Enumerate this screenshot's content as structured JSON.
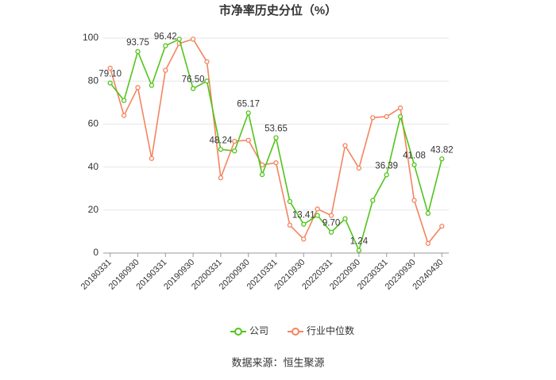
{
  "chart_data": {
    "type": "line",
    "title": "市净率历史分位（%）",
    "categories": [
      "20180331",
      null,
      "20180930",
      null,
      "20190331",
      null,
      "20190930",
      null,
      "20200331",
      null,
      "20200930",
      null,
      "20210331",
      null,
      "20210930",
      null,
      "20220331",
      null,
      "20220930",
      null,
      "20230331",
      null,
      "20230930",
      null,
      "20240430"
    ],
    "series": [
      {
        "name": "公司",
        "color": "#52c41a",
        "values": [
          79.1,
          71,
          93.75,
          78,
          96.42,
          99.5,
          76.5,
          80,
          48.24,
          47.5,
          65.17,
          36.5,
          53.65,
          24,
          13.41,
          17.5,
          9.7,
          16,
          1.24,
          24.5,
          36.39,
          63.5,
          41.08,
          18.5,
          43.82
        ],
        "value_labels": [
          "79.10",
          null,
          "93.75",
          null,
          "96.42",
          null,
          "76.50",
          null,
          "48.24",
          null,
          "65.17",
          null,
          "53.65",
          null,
          "13.41",
          null,
          "9.70",
          null,
          "1.24",
          null,
          "36.39",
          null,
          "41.08",
          null,
          "43.82"
        ]
      },
      {
        "name": "行业中位数",
        "color": "#f4845f",
        "values": [
          86,
          64,
          77,
          44,
          85,
          97.5,
          99.5,
          89,
          35,
          52,
          52.5,
          41,
          42,
          13,
          6.5,
          20.5,
          17.5,
          50,
          39.5,
          63,
          63.5,
          67.5,
          24.5,
          4.5,
          12.5
        ]
      }
    ],
    "ylim": [
      0,
      100
    ],
    "yticks": [
      0,
      20,
      40,
      60,
      80,
      100
    ],
    "grid": true,
    "source": "数据来源：恒生聚源"
  }
}
